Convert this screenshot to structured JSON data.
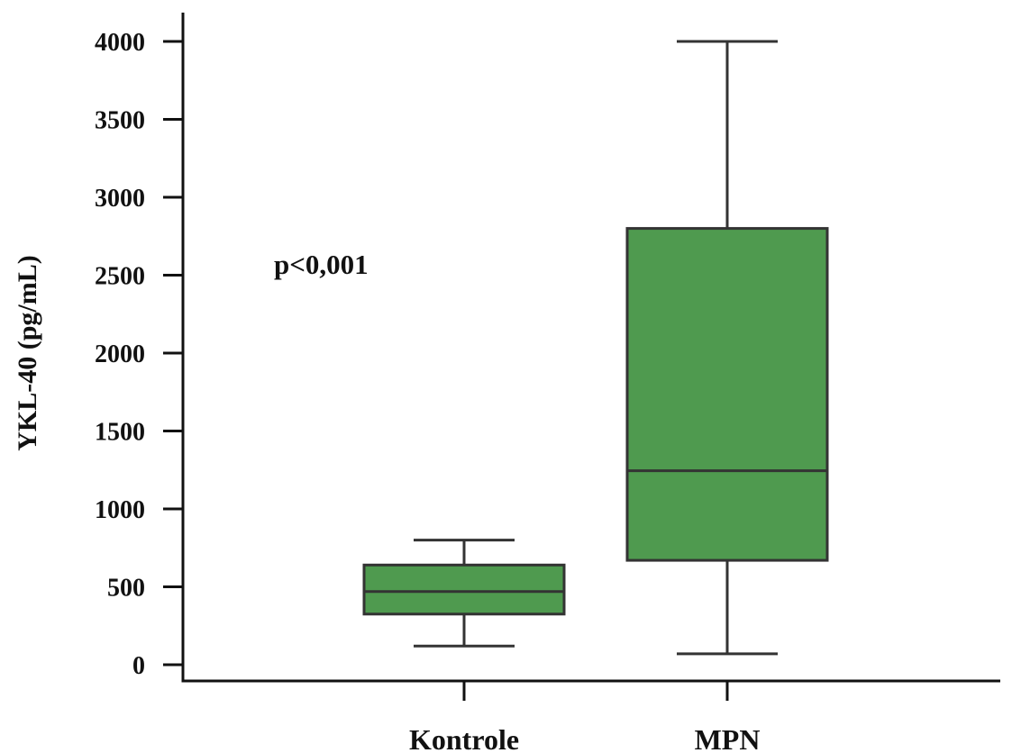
{
  "chart_data": {
    "type": "box",
    "ylabel": "YKL-40 (pg/mL)",
    "xlabel": "",
    "ylim": [
      0,
      4000
    ],
    "yticks": [
      0,
      500,
      1000,
      1500,
      2000,
      2500,
      3000,
      3500,
      4000
    ],
    "grid": false,
    "annotation": "p<0,001",
    "fill_color": "#4f9a4f",
    "stroke_color": "#333333",
    "categories": [
      "Kontrole",
      "MPN"
    ],
    "boxes": [
      {
        "category": "Kontrole",
        "whisker_low": 120,
        "q1": 325,
        "median": 470,
        "q3": 640,
        "whisker_high": 800
      },
      {
        "category": "MPN",
        "whisker_low": 70,
        "q1": 670,
        "median": 1245,
        "q3": 2800,
        "whisker_high": 4000
      }
    ]
  }
}
